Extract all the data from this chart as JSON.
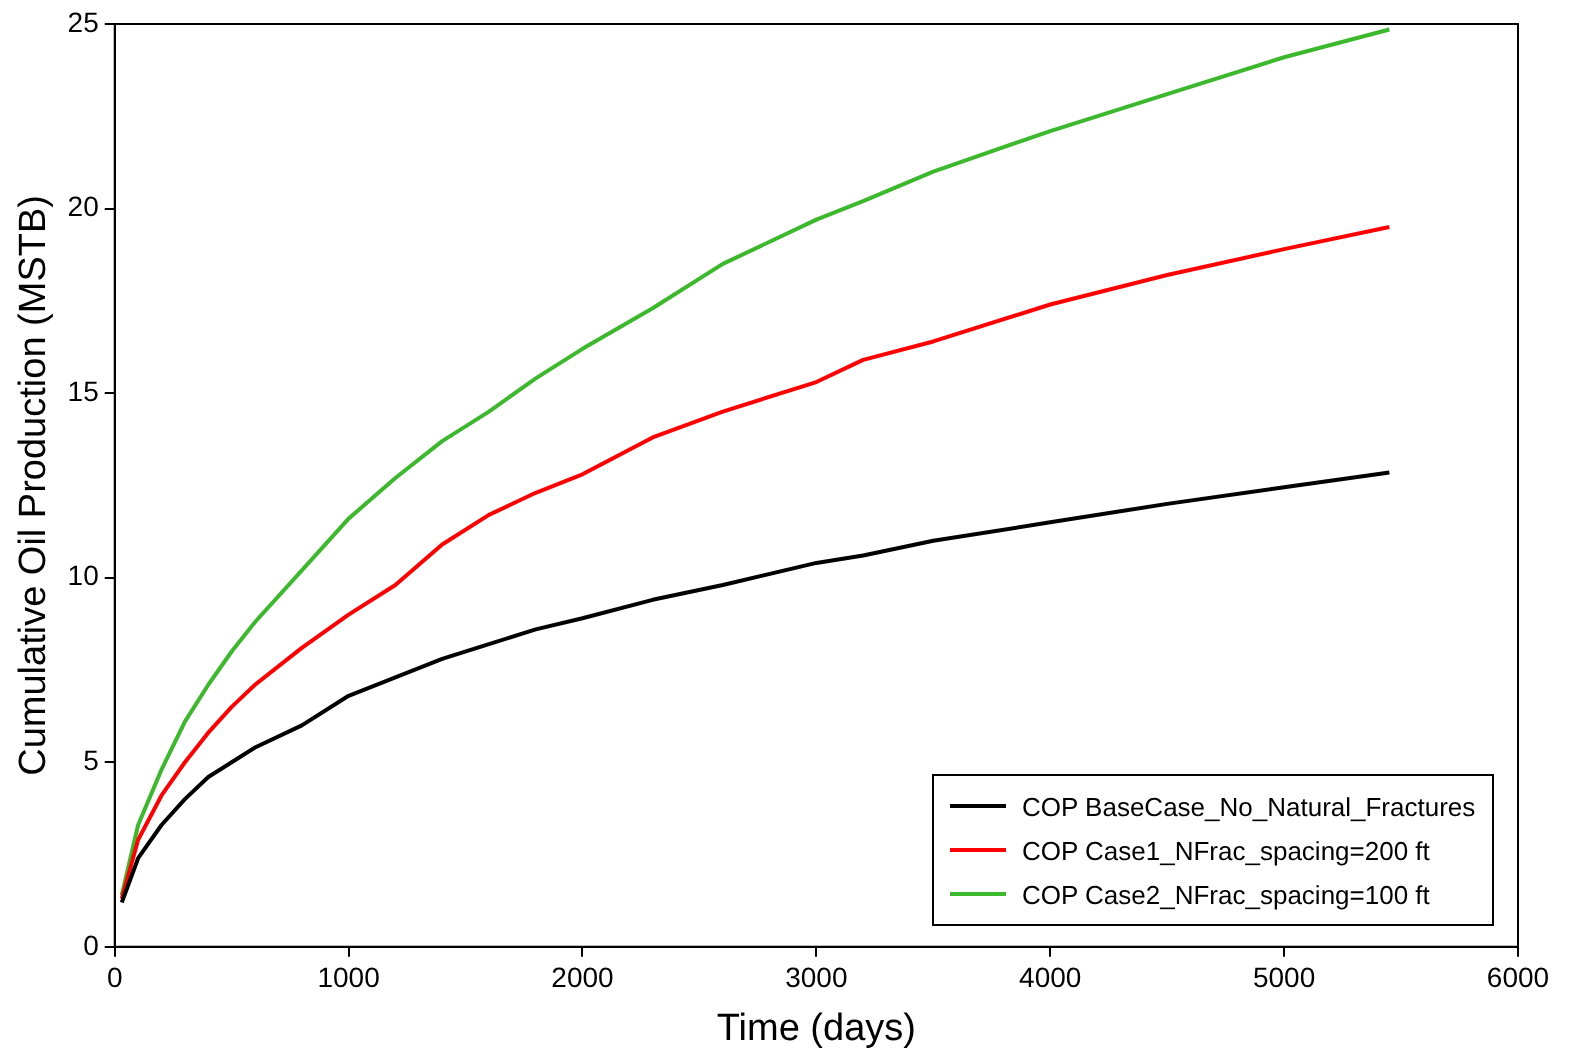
{
  "chart_data": {
    "type": "line",
    "xlabel": "Time (days)",
    "ylabel": "Cumulative Oil Production (MSTB)",
    "xlim": [
      0,
      6000
    ],
    "xticks": [
      0,
      1000,
      2000,
      3000,
      4000,
      5000,
      6000
    ],
    "ylim": [
      0,
      25
    ],
    "yticks": [
      0,
      5,
      10,
      15,
      20,
      25
    ],
    "grid": false,
    "legend": "bottom right",
    "marker": "none",
    "line_style": "solid",
    "x": [
      30,
      100,
      200,
      300,
      400,
      500,
      600,
      800,
      1000,
      1200,
      1400,
      1600,
      1800,
      2000,
      2300,
      2600,
      3000,
      3200,
      3500,
      4000,
      4500,
      5000,
      5450
    ],
    "series": [
      {
        "name": "COP BaseCase_No_Natural_Fractures",
        "color": "#000000",
        "values": [
          1.2,
          2.4,
          3.3,
          4.0,
          4.6,
          5.0,
          5.4,
          6.0,
          6.8,
          7.3,
          7.8,
          8.2,
          8.6,
          8.9,
          9.4,
          9.8,
          10.4,
          10.6,
          11.0,
          11.5,
          12.0,
          12.45,
          12.85
        ]
      },
      {
        "name": "COP Case1_NFrac_spacing=200 ft",
        "color": "#ff0000",
        "values": [
          1.3,
          2.9,
          4.1,
          5.0,
          5.8,
          6.5,
          7.1,
          8.1,
          9.0,
          9.8,
          10.9,
          11.7,
          12.3,
          12.8,
          13.8,
          14.5,
          15.3,
          15.9,
          16.4,
          17.4,
          18.2,
          18.9,
          19.5
        ]
      },
      {
        "name": "COP Case2_NFrac_spacing=100 ft",
        "color": "#3cb82c",
        "values": [
          1.4,
          3.3,
          4.8,
          6.1,
          7.1,
          8.0,
          8.8,
          10.2,
          11.6,
          12.7,
          13.7,
          14.5,
          15.4,
          16.2,
          17.3,
          18.5,
          19.7,
          20.2,
          21.0,
          22.1,
          23.1,
          24.1,
          24.85
        ]
      }
    ]
  }
}
